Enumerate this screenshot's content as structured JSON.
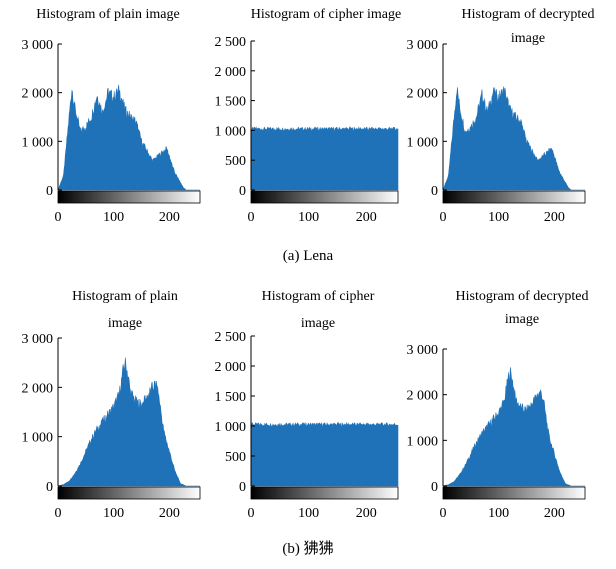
{
  "chart_data": [
    {
      "type": "area",
      "title": "Histogram of plain image",
      "x_ticks": [
        0,
        100,
        200
      ],
      "y_ticks": [
        "0",
        "1 000",
        "2 000",
        "3 000"
      ],
      "xlim": [
        0,
        255
      ],
      "ylim": [
        0,
        3000
      ],
      "color": "#1f72b8",
      "x": [
        0,
        10,
        20,
        25,
        30,
        40,
        50,
        60,
        70,
        80,
        85,
        90,
        100,
        110,
        120,
        130,
        140,
        150,
        160,
        170,
        180,
        190,
        195,
        200,
        205,
        210,
        220,
        225,
        230
      ],
      "values": [
        0,
        300,
        1500,
        2100,
        1700,
        1200,
        1300,
        1500,
        1950,
        1600,
        1800,
        2000,
        1900,
        2050,
        1650,
        1500,
        1400,
        1000,
        800,
        600,
        700,
        800,
        850,
        700,
        500,
        350,
        150,
        50,
        0
      ]
    },
    {
      "type": "area",
      "title": "Histogram of cipher image",
      "x_ticks": [
        0,
        100,
        200
      ],
      "y_ticks": [
        "0",
        "500",
        "1 000",
        "1 500",
        "2 000",
        "2 500"
      ],
      "xlim": [
        0,
        255
      ],
      "ylim": [
        0,
        2500
      ],
      "color": "#1f72b8",
      "uniform_level": 1024
    },
    {
      "type": "area",
      "title": "Histogram of decrypted image",
      "x_ticks": [
        0,
        100,
        200
      ],
      "y_ticks": [
        "0",
        "1 000",
        "2 000",
        "3 000"
      ],
      "xlim": [
        0,
        255
      ],
      "ylim": [
        0,
        3000
      ],
      "color": "#1f72b8",
      "x": [
        0,
        10,
        20,
        25,
        30,
        40,
        50,
        60,
        70,
        80,
        85,
        90,
        100,
        110,
        120,
        130,
        140,
        150,
        160,
        170,
        180,
        190,
        195,
        200,
        205,
        210,
        220,
        225,
        230
      ],
      "values": [
        0,
        300,
        1500,
        2100,
        1700,
        1200,
        1300,
        1500,
        1950,
        1600,
        1800,
        2000,
        1900,
        2050,
        1650,
        1500,
        1400,
        1000,
        800,
        600,
        700,
        800,
        850,
        700,
        500,
        350,
        150,
        50,
        0
      ]
    },
    {
      "type": "area",
      "title": "Histogram of plain image",
      "x_ticks": [
        0,
        100,
        200
      ],
      "y_ticks": [
        "0",
        "1 000",
        "2 000",
        "3 000"
      ],
      "xlim": [
        0,
        255
      ],
      "ylim": [
        0,
        3000
      ],
      "color": "#1f72b8",
      "x": [
        0,
        10,
        20,
        30,
        40,
        50,
        60,
        70,
        80,
        90,
        100,
        110,
        115,
        120,
        125,
        130,
        140,
        150,
        160,
        170,
        175,
        180,
        185,
        190,
        200,
        210,
        220,
        230
      ],
      "values": [
        0,
        30,
        100,
        250,
        450,
        700,
        950,
        1150,
        1300,
        1450,
        1600,
        1850,
        2200,
        2500,
        2300,
        1900,
        1700,
        1650,
        1800,
        2000,
        2050,
        1900,
        1500,
        1100,
        700,
        300,
        50,
        0
      ]
    },
    {
      "type": "area",
      "title": "Histogram of cipher image",
      "x_ticks": [
        0,
        100,
        200
      ],
      "y_ticks": [
        "0",
        "500",
        "1 000",
        "1 500",
        "2 000",
        "2 500"
      ],
      "xlim": [
        0,
        255
      ],
      "ylim": [
        0,
        2500
      ],
      "color": "#1f72b8",
      "uniform_level": 1024
    },
    {
      "type": "area",
      "title": "Histogram of decrypted image",
      "x_ticks": [
        0,
        100,
        200
      ],
      "y_ticks": [
        "0",
        "1 000",
        "2 000",
        "3 000"
      ],
      "xlim": [
        0,
        255
      ],
      "ylim": [
        0,
        3000
      ],
      "color": "#1f72b8",
      "x": [
        0,
        10,
        20,
        30,
        40,
        50,
        60,
        70,
        80,
        90,
        100,
        110,
        115,
        120,
        125,
        130,
        140,
        150,
        160,
        170,
        175,
        180,
        185,
        190,
        200,
        210,
        220,
        230
      ],
      "values": [
        0,
        30,
        100,
        250,
        450,
        700,
        950,
        1150,
        1300,
        1450,
        1600,
        1850,
        2200,
        2500,
        2300,
        1900,
        1700,
        1650,
        1800,
        2000,
        2050,
        1900,
        1500,
        1100,
        700,
        300,
        50,
        0
      ]
    }
  ],
  "captions": [
    "(a) Lena",
    "(b) 狒狒"
  ]
}
